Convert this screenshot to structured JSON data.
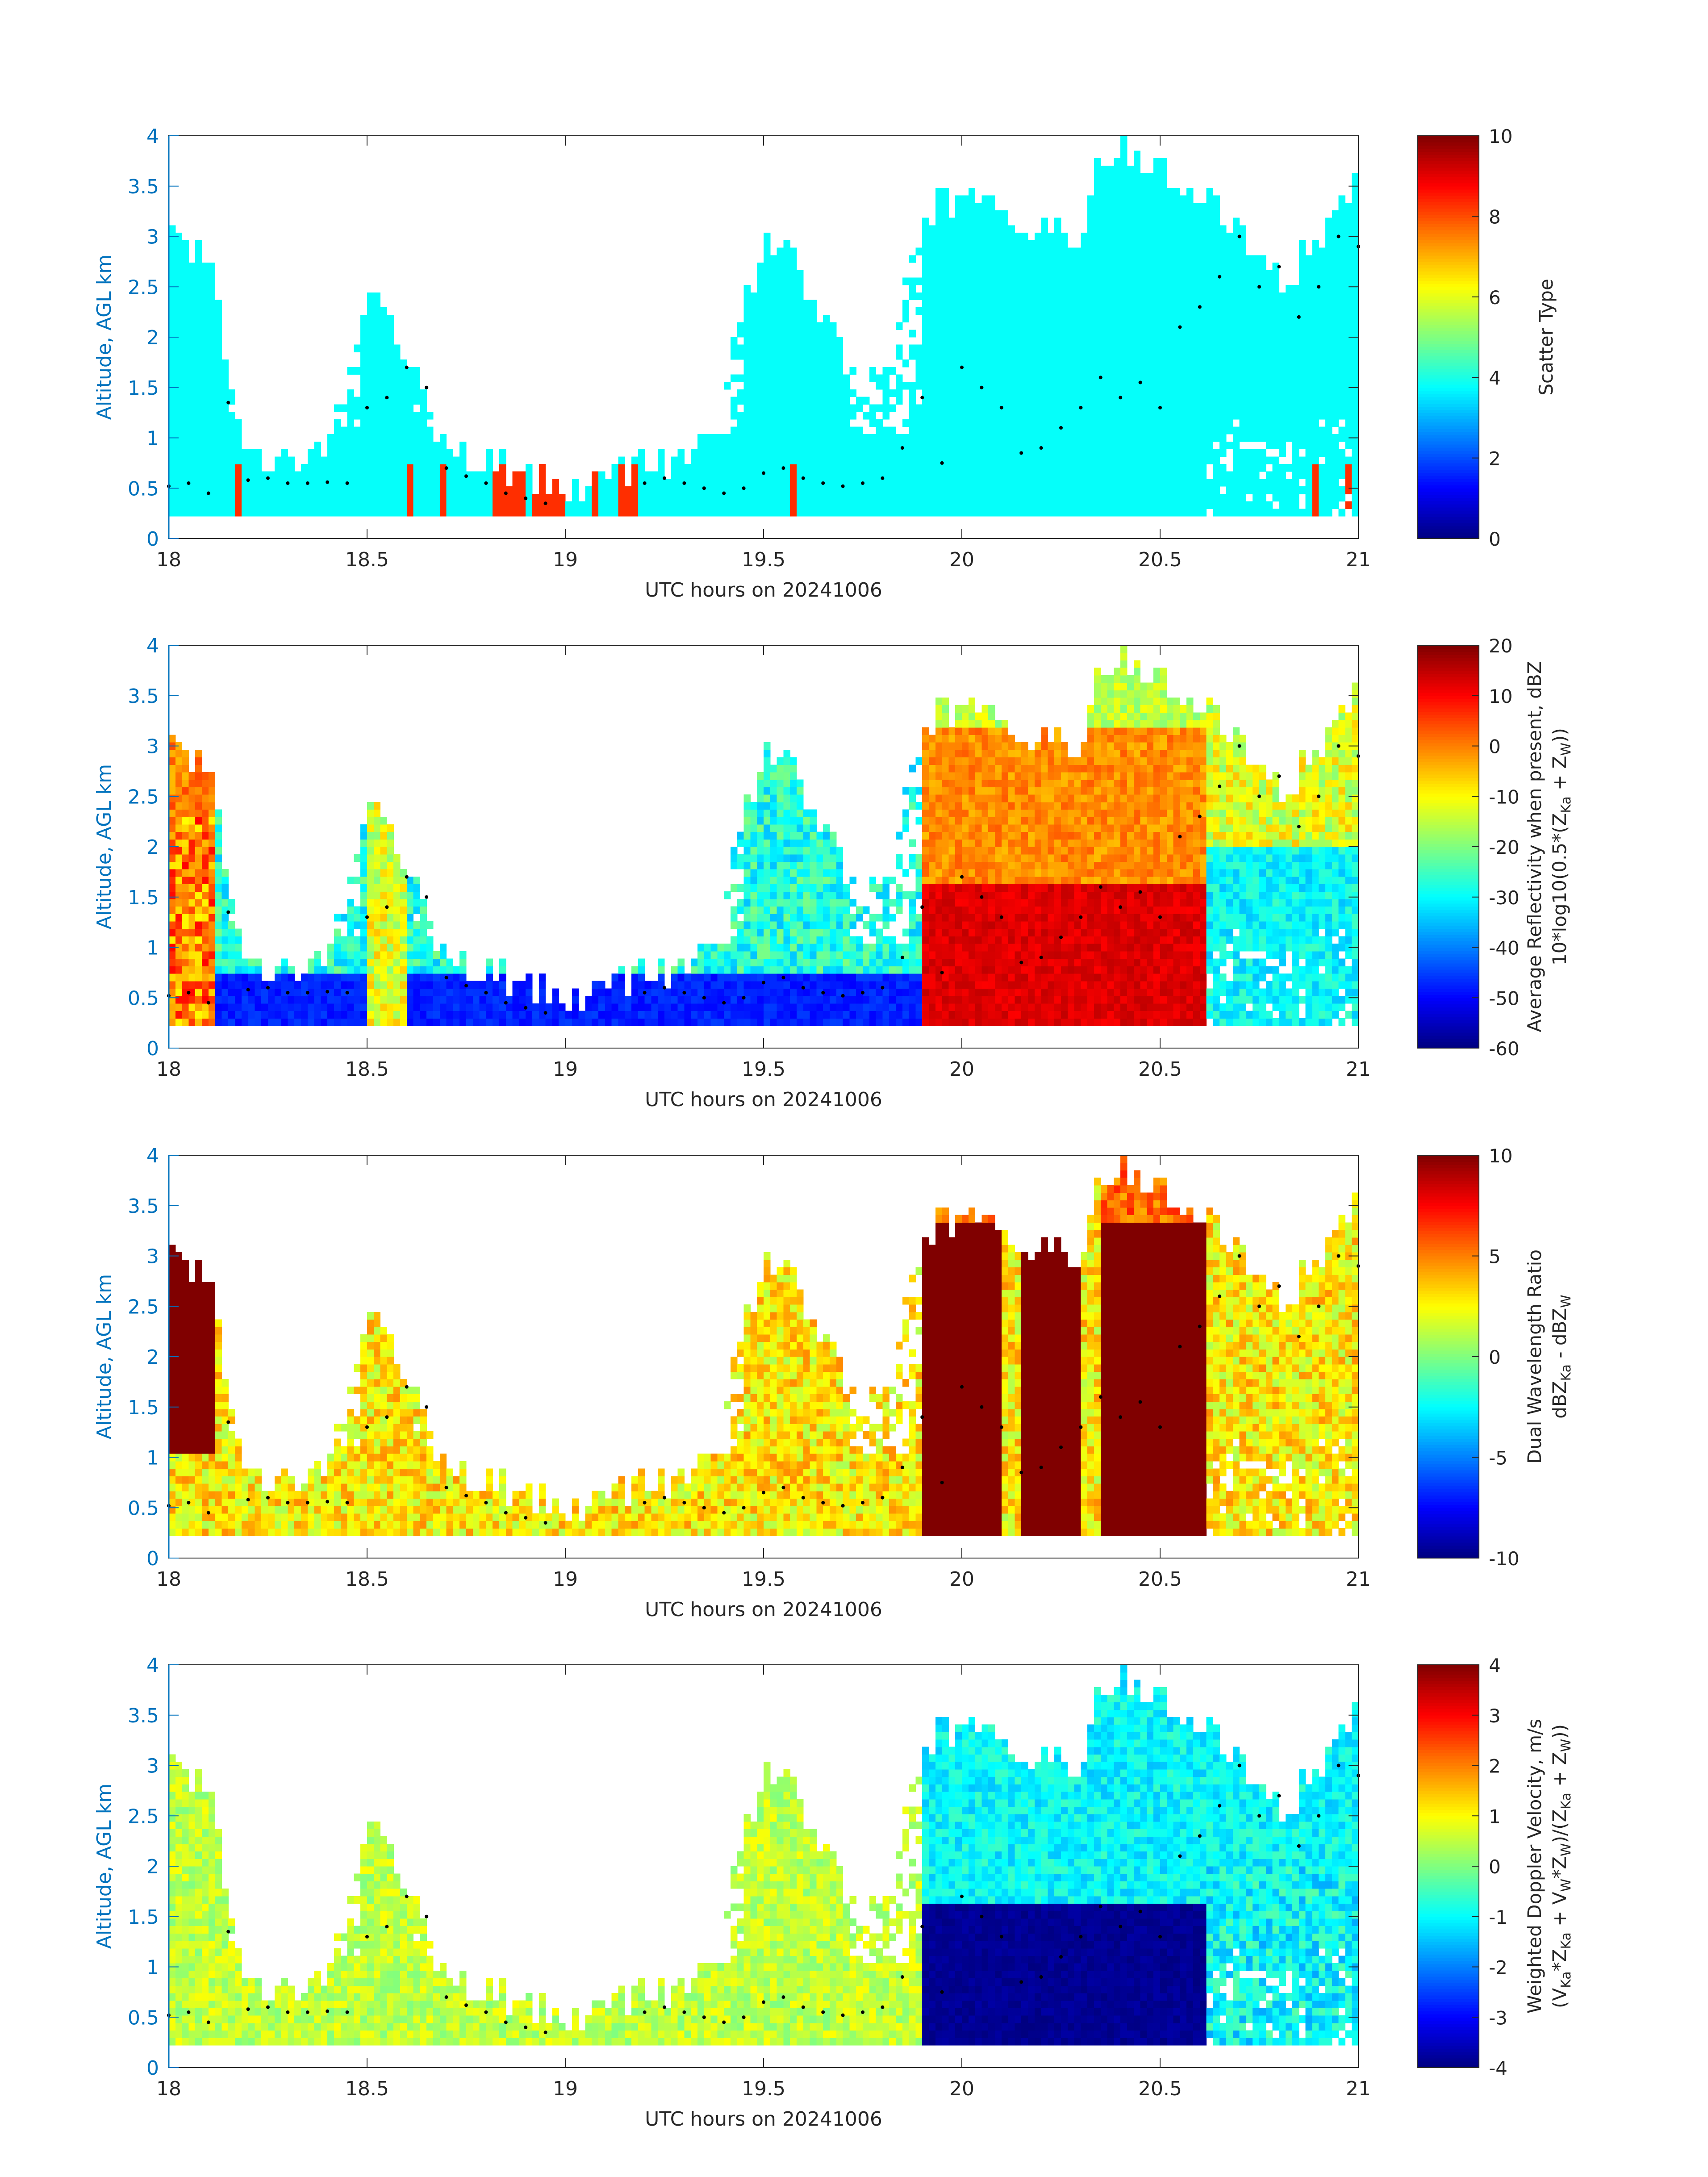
{
  "figure": {
    "x_label": "UTC hours on 20241006",
    "y_label": "Altitude, AGL km",
    "x_ticks": [
      "18",
      "18.5",
      "19",
      "19.5",
      "20",
      "20.5",
      "21"
    ],
    "y_ticks": [
      "0",
      "0.5",
      "1",
      "1.5",
      "2",
      "2.5",
      "3",
      "3.5",
      "4"
    ],
    "x_range": [
      18,
      21
    ],
    "y_range": [
      0,
      4
    ],
    "axis_color": "#0072BD",
    "marker_color": "#000000",
    "colormap": "jet"
  },
  "chart_data": [
    {
      "type": "heatmap",
      "panel": "scatter-type",
      "title": "",
      "xlabel": "UTC hours on 20241006",
      "ylabel": "Altitude, AGL km",
      "xlim": [
        18,
        21
      ],
      "ylim": [
        0,
        4
      ],
      "colorbar": {
        "label_lines": [
          "Scatter Type"
        ],
        "range": [
          0,
          10
        ],
        "ticks": [
          "0",
          "2",
          "4",
          "6",
          "8",
          "10"
        ]
      },
      "dominant_value": 3.8,
      "secondary_value": 8.3,
      "secondary_regions_utc": [
        [
          18.16,
          18.19
        ],
        [
          18.6,
          18.62
        ],
        [
          18.68,
          18.7
        ],
        [
          18.82,
          18.9
        ],
        [
          18.92,
          19.0
        ],
        [
          19.07,
          19.09
        ],
        [
          19.14,
          19.18
        ],
        [
          19.57,
          19.59
        ],
        [
          20.88,
          20.9
        ],
        [
          20.96,
          20.98
        ]
      ],
      "echo_profile": {
        "x": [
          18.0,
          18.05,
          18.1,
          18.15,
          18.2,
          18.3,
          18.4,
          18.5,
          18.55,
          18.6,
          18.7,
          18.8,
          18.9,
          19.0,
          19.1,
          19.2,
          19.3,
          19.4,
          19.5,
          19.55,
          19.6,
          19.7,
          19.8,
          19.9,
          20.0,
          20.1,
          20.2,
          20.3,
          20.35,
          20.4,
          20.5,
          20.6,
          20.7,
          20.8,
          20.9,
          21.0
        ],
        "top_km": [
          3.0,
          2.9,
          2.9,
          1.7,
          0.8,
          0.8,
          0.8,
          2.5,
          2.3,
          1.8,
          0.9,
          0.75,
          0.6,
          0.55,
          0.55,
          0.75,
          0.8,
          1.5,
          3.0,
          2.9,
          2.6,
          1.8,
          1.6,
          3.2,
          3.4,
          3.3,
          3.0,
          3.0,
          3.8,
          3.9,
          3.7,
          3.4,
          3.1,
          2.5,
          3.0,
          3.6
        ],
        "base_km": 0.2
      },
      "markers": {
        "x": [
          18.0,
          18.05,
          18.1,
          18.15,
          18.2,
          18.25,
          18.3,
          18.35,
          18.4,
          18.45,
          18.5,
          18.55,
          18.6,
          18.65,
          18.7,
          18.75,
          18.8,
          18.85,
          18.9,
          18.95,
          19.2,
          19.25,
          19.3,
          19.35,
          19.4,
          19.45,
          19.5,
          19.55,
          19.6,
          19.65,
          19.7,
          19.75,
          19.8,
          19.85,
          19.9,
          19.95,
          20.0,
          20.05,
          20.1,
          20.15,
          20.2,
          20.25,
          20.3,
          20.35,
          20.4,
          20.45,
          20.5,
          20.55,
          20.6,
          20.65,
          20.7,
          20.75,
          20.8,
          20.85,
          20.9,
          20.95,
          21.0
        ],
        "y": [
          0.52,
          0.55,
          0.45,
          1.35,
          0.58,
          0.6,
          0.55,
          0.55,
          0.56,
          0.55,
          1.3,
          1.4,
          1.7,
          1.5,
          0.7,
          0.62,
          0.55,
          0.45,
          0.4,
          0.35,
          0.55,
          0.6,
          0.55,
          0.5,
          0.45,
          0.5,
          0.65,
          0.7,
          0.6,
          0.55,
          0.52,
          0.55,
          0.6,
          0.9,
          1.4,
          0.75,
          1.7,
          1.5,
          1.3,
          0.85,
          0.9,
          1.1,
          1.3,
          1.6,
          1.4,
          1.55,
          1.3,
          2.1,
          2.3,
          2.6,
          3.0,
          2.5,
          2.7,
          2.2,
          2.5,
          3.0,
          2.9
        ]
      }
    },
    {
      "type": "heatmap",
      "panel": "reflectivity",
      "title": "",
      "xlabel": "UTC hours on 20241006",
      "ylabel": "Altitude, AGL km",
      "xlim": [
        18,
        21
      ],
      "ylim": [
        0,
        4
      ],
      "colorbar": {
        "label_lines": [
          "Average Reflectivity when present, dBZ",
          "10*log10(0.5*(Z",
          "Ka",
          " + Z",
          "W",
          "))"
        ],
        "range": [
          -60,
          20
        ],
        "ticks": [
          "-60",
          "-50",
          "-40",
          "-30",
          "-20",
          "-10",
          "0",
          "10",
          "20"
        ]
      },
      "estimated_field": "low values (-50 dBZ) in shallow layer 18.2-19.7 UTC, isolated columns -30 to -10 dBZ, strong echo 0 to 15 dBZ between 19.9 and 20.6 UTC below 3.5 km, tops -45 dBZ",
      "value_levels": [
        -50,
        -35,
        -20,
        -5,
        10,
        15
      ]
    },
    {
      "type": "heatmap",
      "panel": "dual-wavelength-ratio",
      "title": "",
      "xlabel": "UTC hours on 20241006",
      "ylabel": "Altitude, AGL km",
      "xlim": [
        18,
        21
      ],
      "ylim": [
        0,
        4
      ],
      "colorbar": {
        "label_lines": [
          "Dual Wavelength Ratio",
          "dBZ",
          "Ka",
          " - dBZ",
          "W"
        ],
        "range": [
          -10,
          10
        ],
        "ticks": [
          "-10",
          "-5",
          "0",
          "5",
          "10"
        ]
      },
      "estimated_field": "mostly 1 to 4 dB; saturated 10 dB columns at 18.0-18.1, 19.9-20.1, 20.15-20.3, 20.35-20.6 UTC",
      "value_levels": [
        0,
        2,
        4,
        6,
        10
      ]
    },
    {
      "type": "heatmap",
      "panel": "doppler-velocity",
      "title": "",
      "xlabel": "UTC hours on 20241006",
      "ylabel": "Altitude, AGL km",
      "xlim": [
        18,
        21
      ],
      "ylim": [
        0,
        4
      ],
      "colorbar": {
        "label_lines": [
          "Weighted Doppler Velocity, m/s",
          "(V",
          "Ka",
          "*Z",
          "Ka",
          " + V",
          "W",
          "*Z",
          "W",
          ")/(Z",
          "Ka",
          " + Z",
          "W",
          "))"
        ],
        "range": [
          -4,
          4
        ],
        "ticks": [
          "-4",
          "-3",
          "-2",
          "-1",
          "0",
          "1",
          "2",
          "3",
          "4"
        ]
      },
      "estimated_field": "near 0 to +0.5 m/s in shallow layer and upper cloud; about -1 m/s in ice above 2 km after 19.9 UTC; below -3.5 m/s (rain) beneath 1.6 km between 19.9 and 20.6 UTC",
      "value_levels": [
        -4,
        -2,
        -1,
        0,
        0.5,
        1
      ]
    }
  ]
}
